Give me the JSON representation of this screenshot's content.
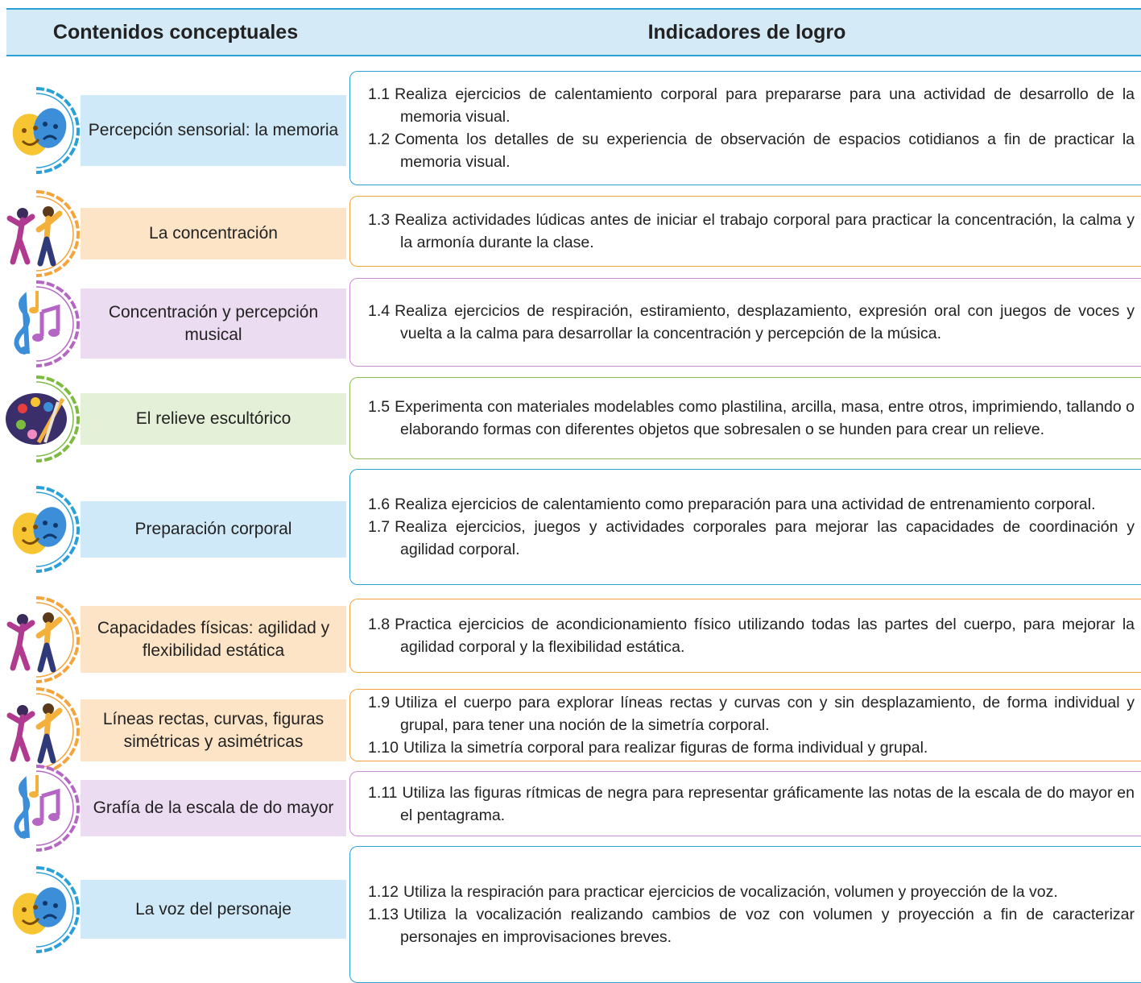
{
  "header": {
    "left": "Contenidos conceptuales",
    "right": "Indicadores de logro"
  },
  "rows": [
    {
      "concept": "Percepción sensorial: la memoria",
      "indicators": [
        {
          "number": "1.1",
          "text": "Realiza ejercicios de calentamiento corporal para prepararse para una actividad de desarrollo de la memoria visual."
        },
        {
          "number": "1.2",
          "text": "Comenta los detalles de su experiencia de observación de espacios cotidianos a fin de practicar la memoria visual."
        }
      ]
    },
    {
      "concept": "La concentración",
      "indicators": [
        {
          "number": "1.3",
          "text": "Realiza actividades lúdicas antes de iniciar el trabajo corporal para practicar la concentración, la calma y la armonía durante la clase."
        }
      ]
    },
    {
      "concept": "Concentración y percepción musical",
      "indicators": [
        {
          "number": "1.4",
          "text": "Realiza ejercicios de respiración, estiramiento, desplazamiento, expresión oral con juegos de voces y vuelta a la calma para desarrollar la concentración y percepción de la música."
        }
      ]
    },
    {
      "concept": "El relieve escultórico",
      "indicators": [
        {
          "number": "1.5",
          "text": "Experimenta con materiales modelables como plastilina, arcilla, masa, entre otros, imprimiendo, tallando o elaborando formas con diferentes objetos que sobresalen o se hunden para crear un relieve."
        }
      ]
    },
    {
      "concept": "Preparación corporal",
      "indicators": [
        {
          "number": "1.6",
          "text": "Realiza ejercicios de calentamiento como preparación para una actividad de entrenamiento corporal."
        },
        {
          "number": "1.7",
          "text": "Realiza ejercicios, juegos y actividades corporales para mejorar las capacidades de coordinación y agilidad corporal."
        }
      ]
    },
    {
      "concept": "Capacidades físicas: agilidad y flexibilidad estática",
      "indicators": [
        {
          "number": "1.8",
          "text": "Practica ejercicios de acondicionamiento físico utilizando todas las partes del cuerpo, para mejorar la agilidad corporal y la flexibilidad estática."
        }
      ]
    },
    {
      "concept": "Líneas rectas, curvas, figuras simétricas y asimétricas",
      "indicators": [
        {
          "number": "1.9",
          "text": "Utiliza el cuerpo para explorar líneas rectas y curvas con y sin desplazamiento, de forma individual y grupal, para tener una noción de la simetría corporal."
        },
        {
          "number": "1.10",
          "text": "Utiliza la simetría corporal para realizar figuras de forma individual y grupal."
        }
      ]
    },
    {
      "concept": "Grafía de la escala de do mayor",
      "indicators": [
        {
          "number": "1.11",
          "text": "Utiliza las figuras rítmicas de negra para representar gráficamente las notas de la escala de do mayor en el pentagrama."
        }
      ]
    },
    {
      "concept": "La voz del personaje",
      "indicators": [
        {
          "number": "1.12",
          "text": "Utiliza la respiración para practicar ejercicios de vocalización, volumen y proyección de la voz."
        },
        {
          "number": "1.13",
          "text": "Utiliza la vocalización realizando cambios de voz con volumen y proyección a fin de caracterizar personajes en improvisaciones breves."
        }
      ]
    }
  ]
}
